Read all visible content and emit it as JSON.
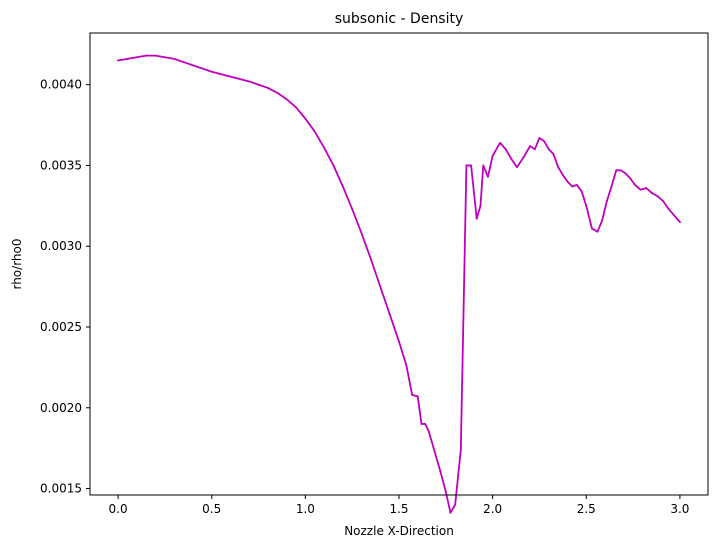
{
  "chart_data": {
    "type": "line",
    "title": "subsonic - Density",
    "xlabel": "Nozzle X-Direction",
    "ylabel": "rho/rho0",
    "xlim": [
      -0.15,
      3.15
    ],
    "ylim": [
      0.00146,
      0.00432
    ],
    "xticks": [
      0.0,
      0.5,
      1.0,
      1.5,
      2.0,
      2.5,
      3.0
    ],
    "xtick_labels": [
      "0.0",
      "0.5",
      "1.0",
      "1.5",
      "2.0",
      "2.5",
      "3.0"
    ],
    "yticks": [
      0.0015,
      0.002,
      0.0025,
      0.003,
      0.0035,
      0.004
    ],
    "ytick_labels": [
      "0.0015",
      "0.0020",
      "0.0025",
      "0.0030",
      "0.0035",
      "0.0040"
    ],
    "grid": false,
    "series": [
      {
        "color": "#bf00bf",
        "x": [
          0.0,
          0.05,
          0.1,
          0.15,
          0.2,
          0.25,
          0.3,
          0.4,
          0.5,
          0.6,
          0.7,
          0.8,
          0.85,
          0.9,
          0.95,
          1.0,
          1.05,
          1.1,
          1.15,
          1.2,
          1.25,
          1.3,
          1.35,
          1.4,
          1.45,
          1.5,
          1.54,
          1.57,
          1.6,
          1.62,
          1.64,
          1.66,
          1.69,
          1.72,
          1.75,
          1.775,
          1.8,
          1.83,
          1.86,
          1.885,
          1.915,
          1.935,
          1.95,
          1.975,
          2.0,
          2.04,
          2.07,
          2.1,
          2.13,
          2.165,
          2.2,
          2.225,
          2.25,
          2.275,
          2.3,
          2.325,
          2.35,
          2.375,
          2.4,
          2.425,
          2.45,
          2.475,
          2.5,
          2.53,
          2.56,
          2.585,
          2.61,
          2.635,
          2.66,
          2.685,
          2.71,
          2.735,
          2.76,
          2.79,
          2.82,
          2.85,
          2.88,
          2.91,
          2.94,
          2.97,
          3.0
        ],
        "y": [
          0.00415,
          0.00416,
          0.00417,
          0.00418,
          0.00418,
          0.00417,
          0.00416,
          0.00412,
          0.00408,
          0.00405,
          0.00402,
          0.00398,
          0.00395,
          0.00391,
          0.00386,
          0.00379,
          0.00371,
          0.00361,
          0.0035,
          0.00337,
          0.00323,
          0.00308,
          0.00292,
          0.00275,
          0.00258,
          0.00241,
          0.00226,
          0.00208,
          0.00207,
          0.0019,
          0.0019,
          0.00185,
          0.00173,
          0.00161,
          0.00148,
          0.00135,
          0.0014,
          0.00174,
          0.0035,
          0.0035,
          0.00317,
          0.00325,
          0.0035,
          0.00343,
          0.00356,
          0.00364,
          0.0036,
          0.00354,
          0.00349,
          0.00355,
          0.00362,
          0.0036,
          0.00367,
          0.00365,
          0.0036,
          0.00357,
          0.00349,
          0.00344,
          0.0034,
          0.00337,
          0.00338,
          0.00334,
          0.00325,
          0.00311,
          0.00309,
          0.00316,
          0.00328,
          0.00337,
          0.00347,
          0.00347,
          0.00345,
          0.00342,
          0.00338,
          0.00335,
          0.00336,
          0.00333,
          0.00331,
          0.00328,
          0.00323,
          0.00319,
          0.00315
        ]
      }
    ]
  }
}
